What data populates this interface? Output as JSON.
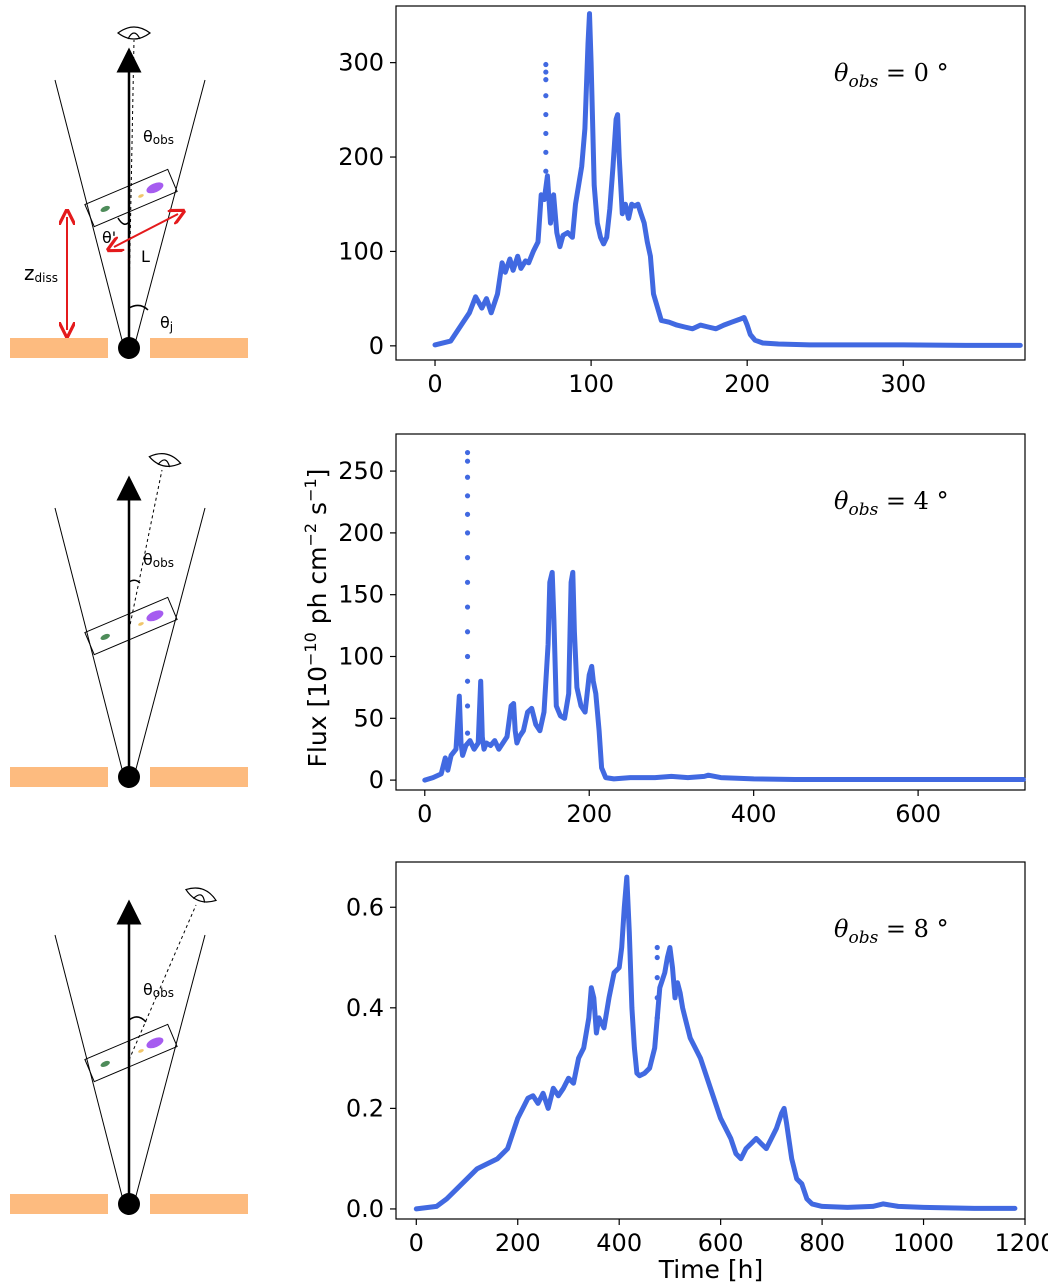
{
  "figure": {
    "ylabel_main": "Flux [10",
    "ylabel_exp1": "−10",
    "ylabel_mid": " ph cm",
    "ylabel_exp2": "−2",
    "ylabel_mid2": " s",
    "ylabel_exp3": "−1",
    "ylabel_end": "]",
    "xlabel": "Time [h]",
    "series_color": "#4169E1"
  },
  "schematic": {
    "disk_color": "#FDBB7F",
    "arrow_color": "#E41A1C",
    "blob_colors": [
      "#4E8C5A",
      "#A65CF0",
      "#F0C66A"
    ],
    "panels": [
      {
        "theta_obs": "θ",
        "theta_obs_sub": "obs",
        "theta_prime": "θ'",
        "L": "L",
        "z_diss": "z",
        "z_diss_sub": "diss",
        "theta_j": "θ",
        "theta_j_sub": "j"
      },
      {
        "theta_obs": "θ",
        "theta_obs_sub": "obs"
      },
      {
        "theta_obs": "θ",
        "theta_obs_sub": "obs"
      }
    ]
  },
  "chart_data": [
    {
      "type": "scatter",
      "annotation_theta": "θ",
      "annotation_sub": "obs",
      "annotation_value": " = 0 °",
      "xlim": [
        -25,
        378
      ],
      "ylim": [
        -15,
        360
      ],
      "xticks": [
        0,
        100,
        200,
        300
      ],
      "yticks": [
        0,
        100,
        200,
        300
      ],
      "x": [
        0,
        10,
        18,
        22,
        26,
        30,
        33,
        36,
        40,
        43,
        45,
        48,
        50,
        53,
        55,
        58,
        60,
        63,
        66,
        68,
        70,
        72,
        74,
        76,
        78,
        80,
        82,
        85,
        88,
        90,
        92,
        94,
        96,
        98,
        99,
        100,
        102,
        104,
        106,
        108,
        110,
        112,
        114,
        116,
        117,
        118,
        120,
        122,
        124,
        126,
        128,
        130,
        132,
        134,
        136,
        138,
        140,
        145,
        150,
        155,
        160,
        165,
        170,
        175,
        180,
        185,
        190,
        195,
        198,
        200,
        202,
        205,
        210,
        220,
        240,
        260,
        300,
        340,
        375
      ],
      "values": [
        1,
        5,
        25,
        35,
        52,
        40,
        50,
        35,
        55,
        88,
        78,
        92,
        80,
        95,
        82,
        90,
        88,
        100,
        110,
        160,
        155,
        180,
        130,
        160,
        120,
        105,
        117,
        120,
        115,
        150,
        170,
        190,
        230,
        320,
        352,
        300,
        170,
        130,
        115,
        108,
        115,
        145,
        190,
        240,
        245,
        200,
        140,
        150,
        135,
        150,
        148,
        150,
        140,
        130,
        110,
        95,
        55,
        27,
        25,
        22,
        20,
        18,
        22,
        20,
        18,
        22,
        25,
        28,
        30,
        22,
        12,
        6,
        3,
        2,
        1,
        1,
        1,
        0.5,
        0.5
      ],
      "flare": {
        "x": 71,
        "values": [
          165,
          185,
          205,
          225,
          245,
          265,
          282,
          290,
          298
        ]
      }
    },
    {
      "type": "scatter",
      "annotation_theta": "θ",
      "annotation_sub": "obs",
      "annotation_value": " = 4 °",
      "xlim": [
        -35,
        730
      ],
      "ylim": [
        -8,
        280
      ],
      "xticks": [
        0,
        200,
        400,
        600
      ],
      "yticks": [
        0,
        50,
        100,
        150,
        200,
        250
      ],
      "x": [
        0,
        10,
        20,
        25,
        28,
        32,
        38,
        42,
        44,
        46,
        50,
        55,
        60,
        65,
        68,
        70,
        72,
        75,
        80,
        85,
        90,
        95,
        100,
        105,
        108,
        110,
        112,
        115,
        120,
        125,
        130,
        135,
        140,
        145,
        150,
        152,
        155,
        157,
        160,
        165,
        170,
        175,
        178,
        180,
        182,
        185,
        190,
        195,
        200,
        203,
        205,
        208,
        212,
        215,
        220,
        230,
        250,
        280,
        300,
        320,
        340,
        345,
        360,
        400,
        450,
        500,
        600,
        728
      ],
      "values": [
        0,
        2,
        5,
        18,
        8,
        20,
        25,
        68,
        30,
        20,
        28,
        32,
        25,
        30,
        80,
        35,
        25,
        30,
        28,
        32,
        25,
        30,
        35,
        60,
        62,
        40,
        30,
        35,
        40,
        55,
        58,
        45,
        40,
        55,
        110,
        160,
        168,
        130,
        60,
        52,
        50,
        70,
        160,
        168,
        120,
        75,
        60,
        55,
        85,
        92,
        80,
        70,
        40,
        10,
        2,
        1,
        2,
        2,
        3,
        2,
        3,
        4,
        2,
        1,
        0.5,
        0.5,
        0.5,
        0.5
      ],
      "flare": {
        "x": 52,
        "values": [
          38,
          60,
          80,
          100,
          120,
          140,
          160,
          180,
          200,
          215,
          230,
          245,
          258,
          265
        ]
      }
    },
    {
      "type": "scatter",
      "annotation_theta": "θ",
      "annotation_sub": "obs",
      "annotation_value": " = 8 °",
      "xlim": [
        -40,
        1200
      ],
      "ylim": [
        -0.02,
        0.69
      ],
      "xticks": [
        0,
        200,
        400,
        600,
        800,
        1000,
        1200
      ],
      "yticks": [
        0,
        0.2,
        0.4,
        0.6
      ],
      "yticklabels": [
        "0.0",
        "0.2",
        "0.4",
        "0.6"
      ],
      "x": [
        0,
        40,
        60,
        80,
        100,
        120,
        140,
        160,
        180,
        200,
        210,
        220,
        230,
        240,
        250,
        260,
        270,
        280,
        290,
        300,
        310,
        320,
        330,
        340,
        345,
        350,
        355,
        360,
        370,
        380,
        390,
        400,
        405,
        410,
        415,
        420,
        425,
        430,
        435,
        440,
        450,
        460,
        470,
        480,
        490,
        495,
        500,
        505,
        510,
        515,
        520,
        525,
        530,
        540,
        560,
        580,
        600,
        620,
        630,
        640,
        650,
        660,
        670,
        680,
        690,
        700,
        710,
        720,
        725,
        730,
        740,
        750,
        760,
        770,
        780,
        800,
        850,
        900,
        920,
        950,
        1000,
        1100,
        1180
      ],
      "values": [
        0,
        0.005,
        0.02,
        0.04,
        0.06,
        0.08,
        0.09,
        0.1,
        0.12,
        0.18,
        0.2,
        0.22,
        0.225,
        0.21,
        0.23,
        0.2,
        0.24,
        0.225,
        0.24,
        0.26,
        0.25,
        0.3,
        0.32,
        0.38,
        0.44,
        0.42,
        0.35,
        0.38,
        0.36,
        0.42,
        0.47,
        0.48,
        0.52,
        0.6,
        0.66,
        0.55,
        0.4,
        0.32,
        0.27,
        0.265,
        0.27,
        0.28,
        0.32,
        0.44,
        0.47,
        0.5,
        0.52,
        0.48,
        0.42,
        0.45,
        0.43,
        0.4,
        0.38,
        0.34,
        0.3,
        0.24,
        0.18,
        0.14,
        0.11,
        0.1,
        0.12,
        0.13,
        0.14,
        0.13,
        0.12,
        0.14,
        0.16,
        0.19,
        0.2,
        0.17,
        0.1,
        0.06,
        0.05,
        0.02,
        0.01,
        0.005,
        0.003,
        0.005,
        0.01,
        0.005,
        0.003,
        0.001,
        0.001
      ],
      "flare": {
        "x": 475,
        "values": [
          0.38,
          0.42,
          0.46,
          0.5,
          0.52
        ]
      }
    }
  ]
}
